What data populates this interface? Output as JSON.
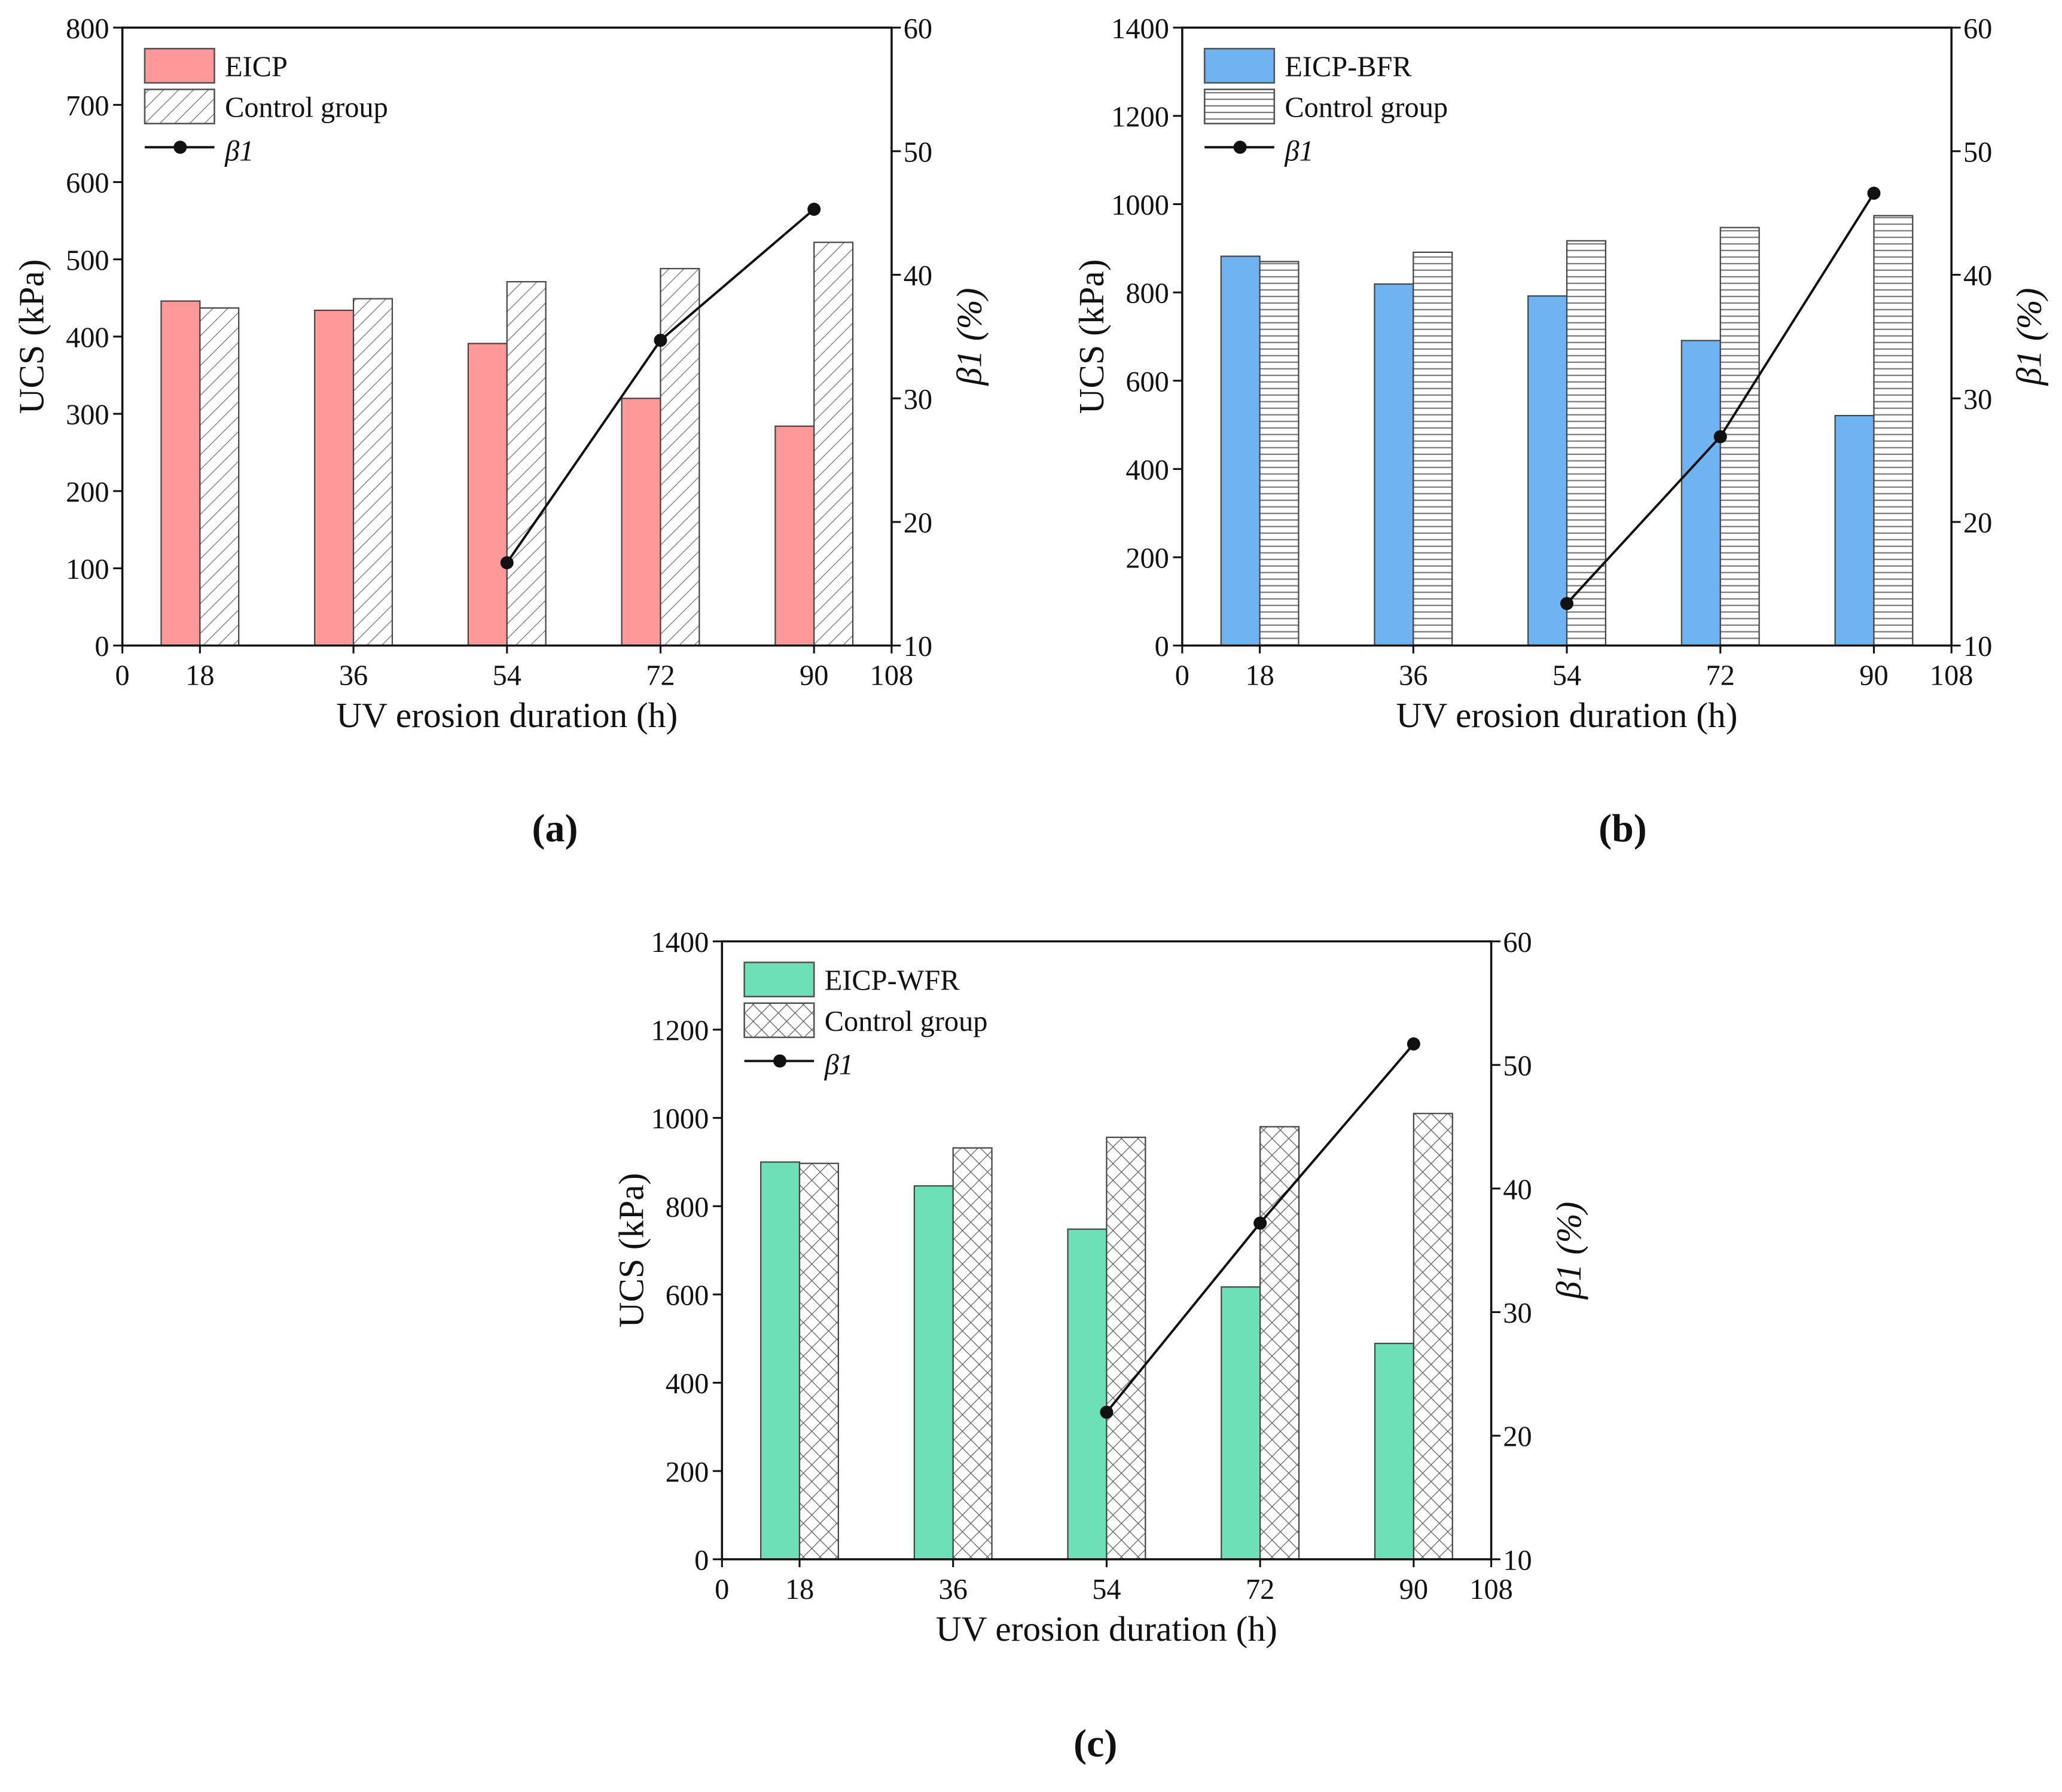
{
  "chart_data": [
    {
      "type": "bar",
      "panel_label": "(a)",
      "categories": [
        "18",
        "36",
        "54",
        "72",
        "90"
      ],
      "x_ticks": [
        "0",
        "18",
        "36",
        "54",
        "72",
        "90",
        "108"
      ],
      "xlabel": "UV erosion duration (h)",
      "ylabel": "UCS (kPa)",
      "ylabel2": "β1 (%)",
      "ylim": [
        0,
        800
      ],
      "yticks": [
        0,
        100,
        200,
        300,
        400,
        500,
        600,
        700,
        800
      ],
      "y2lim": [
        10,
        60
      ],
      "y2ticks": [
        10,
        20,
        30,
        40,
        50,
        60
      ],
      "pattern": "diagonal",
      "series": [
        {
          "name": "EICP",
          "kind": "bar",
          "color": "#FF9999",
          "values": [
            446,
            434,
            391,
            320,
            284
          ]
        },
        {
          "name": "Control group",
          "kind": "bar-hatched",
          "values": [
            437,
            449,
            471,
            488,
            522
          ]
        },
        {
          "name": "β1",
          "kind": "line",
          "axis": "right",
          "x": [
            "54",
            "72",
            "90"
          ],
          "values": [
            16.7,
            34.7,
            45.3
          ]
        }
      ]
    },
    {
      "type": "bar",
      "panel_label": "(b)",
      "categories": [
        "18",
        "36",
        "54",
        "72",
        "90"
      ],
      "x_ticks": [
        "0",
        "18",
        "36",
        "54",
        "72",
        "90",
        "108"
      ],
      "xlabel": "UV erosion duration (h)",
      "ylabel": "UCS (kPa)",
      "ylabel2": "β1 (%)",
      "ylim": [
        0,
        1400
      ],
      "yticks": [
        0,
        200,
        400,
        600,
        800,
        1000,
        1200,
        1400
      ],
      "y2lim": [
        10,
        60
      ],
      "y2ticks": [
        10,
        20,
        30,
        40,
        50,
        60
      ],
      "pattern": "horizontal",
      "series": [
        {
          "name": "EICP-BFR",
          "kind": "bar",
          "color": "#6FB3F0",
          "values": [
            882,
            819,
            792,
            691,
            521
          ]
        },
        {
          "name": "Control group",
          "kind": "bar-hatched",
          "values": [
            870,
            891,
            917,
            947,
            974
          ]
        },
        {
          "name": "β1",
          "kind": "line",
          "axis": "right",
          "x": [
            "54",
            "72",
            "90"
          ],
          "values": [
            13.4,
            26.9,
            46.6
          ]
        }
      ]
    },
    {
      "type": "bar",
      "panel_label": "(c)",
      "categories": [
        "18",
        "36",
        "54",
        "72",
        "90"
      ],
      "x_ticks": [
        "0",
        "18",
        "36",
        "54",
        "72",
        "90",
        "108"
      ],
      "xlabel": "UV erosion duration (h)",
      "ylabel": "UCS (kPa)",
      "ylabel2": "β1 (%)",
      "ylim": [
        0,
        1400
      ],
      "yticks": [
        0,
        200,
        400,
        600,
        800,
        1000,
        1200,
        1400
      ],
      "y2lim": [
        10,
        60
      ],
      "y2ticks": [
        10,
        20,
        30,
        40,
        50,
        60
      ],
      "pattern": "cross",
      "series": [
        {
          "name": "EICP-WFR",
          "kind": "bar",
          "color": "#6EE0B8",
          "values": [
            900,
            846,
            748,
            617,
            489
          ]
        },
        {
          "name": "Control group",
          "kind": "bar-hatched",
          "values": [
            897,
            932,
            956,
            980,
            1010
          ]
        },
        {
          "name": "β1",
          "kind": "line",
          "axis": "right",
          "x": [
            "54",
            "72",
            "90"
          ],
          "values": [
            21.9,
            37.2,
            51.7
          ]
        }
      ]
    }
  ]
}
